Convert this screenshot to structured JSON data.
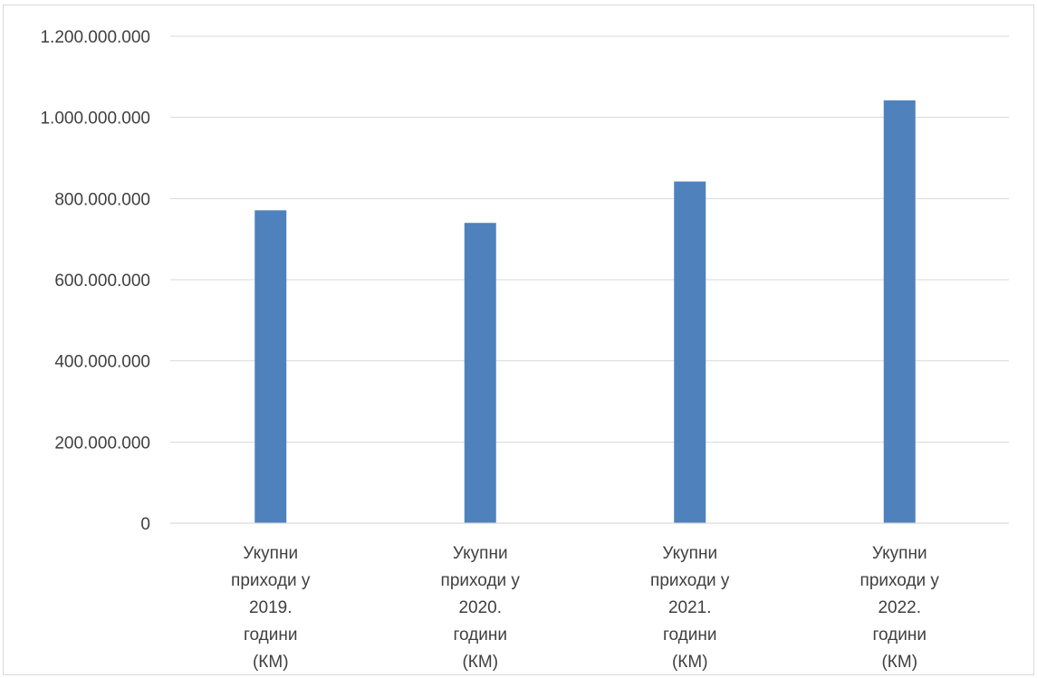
{
  "chart_data": {
    "type": "bar",
    "categories": [
      [
        "Укупни",
        "приходи у",
        "2019.",
        "години",
        "(КМ)"
      ],
      [
        "Укупни",
        "приходи у",
        "2020.",
        "години",
        "(КМ)"
      ],
      [
        "Укупни",
        "приходи у",
        "2021.",
        "години",
        "(КМ)"
      ],
      [
        "Укупни",
        "приходи у",
        "2022.",
        "години",
        "(КМ)"
      ]
    ],
    "values": [
      771000000,
      740000000,
      842000000,
      1042000000
    ],
    "ylim": [
      0,
      1200000000
    ],
    "yticks": [
      0,
      200000000,
      400000000,
      600000000,
      800000000,
      1000000000,
      1200000000
    ],
    "ytick_labels": [
      "0",
      "200.000.000",
      "400.000.000",
      "600.000.000",
      "800.000.000",
      "1.000.000.000",
      "1.200.000.000"
    ],
    "grid": true,
    "legend": "none",
    "bar_color": "#4f81bd",
    "title": "",
    "xlabel": "",
    "ylabel": ""
  }
}
